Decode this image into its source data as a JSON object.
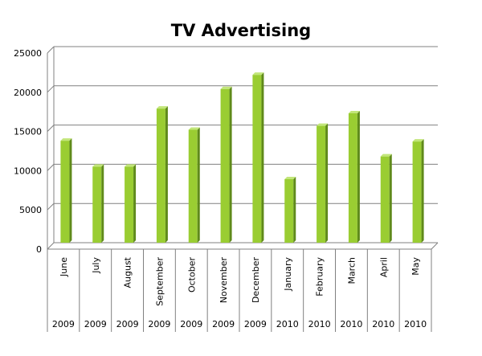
{
  "chart_data": {
    "type": "bar",
    "title": "TV Advertising",
    "categories": [
      "June",
      "July",
      "August",
      "September",
      "October",
      "November",
      "December",
      "January",
      "February",
      "March",
      "April",
      "May"
    ],
    "years": [
      "2009",
      "2009",
      "2009",
      "2009",
      "2009",
      "2009",
      "2009",
      "2010",
      "2010",
      "2010",
      "2010",
      "2010"
    ],
    "values": [
      13000,
      9700,
      9700,
      17100,
      14400,
      19600,
      21400,
      8100,
      14900,
      16500,
      11000,
      12900
    ],
    "yticks": [
      0,
      5000,
      10000,
      15000,
      20000,
      25000
    ],
    "ylim": [
      0,
      25000
    ],
    "grid": true,
    "legend": "none",
    "colors": {
      "bar_front": "#9acd32",
      "bar_side": "#5f8a1a",
      "bar_top": "#c2e67a",
      "grid": "#808080"
    }
  }
}
